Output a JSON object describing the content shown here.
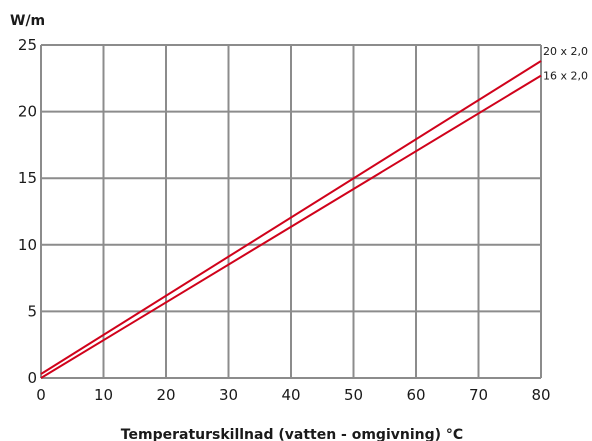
{
  "chart_data": {
    "type": "line",
    "title": "",
    "ylabel": "W/m",
    "xlabel": "Temperaturskillnad (vatten - omgivning) °C",
    "xlim": [
      0,
      80
    ],
    "ylim": [
      0,
      25
    ],
    "xticks": [
      0,
      10,
      20,
      30,
      40,
      50,
      60,
      70,
      80
    ],
    "yticks": [
      0,
      5,
      10,
      15,
      20,
      25
    ],
    "grid": true,
    "line_color": "#d0021b",
    "grid_color": "#8c8c8c",
    "series": [
      {
        "name": "20 x 2,0",
        "x": [
          0,
          80
        ],
        "y": [
          0.3,
          23.8
        ]
      },
      {
        "name": "16 x 2,0",
        "x": [
          0,
          80
        ],
        "y": [
          0.0,
          22.7
        ]
      }
    ]
  }
}
